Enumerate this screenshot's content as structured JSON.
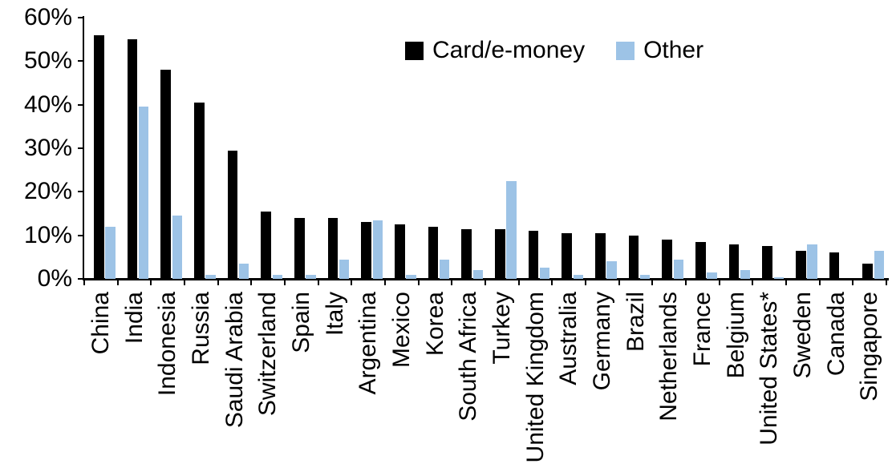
{
  "chart_data": {
    "type": "bar",
    "title": "",
    "xlabel": "",
    "ylabel": "",
    "categories": [
      "China",
      "India",
      "Indonesia",
      "Russia",
      "Saudi Arabia",
      "Switzerland",
      "Spain",
      "Italy",
      "Argentina",
      "Mexico",
      "Korea",
      "South Africa",
      "Turkey",
      "United Kingdom",
      "Australia",
      "Germany",
      "Brazil",
      "Netherlands",
      "France",
      "Belgium",
      "United States*",
      "Sweden",
      "Canada",
      "Singapore"
    ],
    "series": [
      {
        "name": "Card/e-money",
        "color": "#000000",
        "values": [
          56,
          55,
          48,
          40.5,
          29.5,
          15.5,
          14,
          14,
          13,
          12.5,
          12,
          11.5,
          11.5,
          11,
          10.5,
          10.5,
          10,
          9,
          8.5,
          8,
          7.5,
          6.5,
          6,
          3.5
        ]
      },
      {
        "name": "Other",
        "color": "#9DC3E6",
        "values": [
          12,
          39.5,
          14.5,
          1,
          3.5,
          1,
          1,
          4.5,
          13.5,
          1,
          4.5,
          2,
          22.5,
          2.5,
          1,
          4,
          1,
          4.5,
          1.5,
          2,
          0.3,
          8,
          0,
          6.5
        ]
      }
    ],
    "ylim": [
      0,
      60
    ],
    "ytick_step": 10,
    "ytick_labels": [
      "0%",
      "10%",
      "20%",
      "30%",
      "40%",
      "50%",
      "60%"
    ],
    "grid": false,
    "legend_position": "top-center",
    "axis_color": "#000000"
  }
}
